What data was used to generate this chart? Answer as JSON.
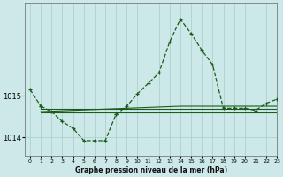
{
  "background_color": "#cce8e8",
  "grid_color": "#aacccc",
  "line_color": "#1a5c1a",
  "x": [
    0,
    1,
    2,
    3,
    4,
    5,
    6,
    7,
    8,
    9,
    10,
    11,
    12,
    13,
    14,
    15,
    16,
    17,
    18,
    19,
    20,
    21,
    22,
    23
  ],
  "series_dotted": [
    1015.15,
    1014.75,
    null,
    null,
    null,
    null,
    null,
    null,
    1014.55,
    1014.75,
    1015.05,
    1015.3,
    1015.55,
    1016.3,
    1016.85,
    1016.5,
    1016.1,
    1015.75,
    1014.7,
    1014.7,
    1014.7,
    1014.65,
    1014.82,
    1014.92
  ],
  "series_low": [
    null,
    1014.75,
    1014.62,
    1014.38,
    1014.22,
    1013.92,
    1013.92,
    1013.92,
    1014.55,
    null,
    null,
    null,
    null,
    null,
    null,
    null,
    null,
    null,
    null,
    null,
    null,
    null,
    null,
    null
  ],
  "series_flat_a": [
    null,
    1014.68,
    1014.68,
    1014.68,
    1014.68,
    1014.68,
    1014.68,
    1014.68,
    1014.68,
    1014.68,
    1014.68,
    1014.68,
    1014.68,
    1014.68,
    1014.68,
    1014.68,
    1014.68,
    1014.68,
    1014.68,
    1014.68,
    1014.68,
    1014.68,
    1014.68,
    1014.68
  ],
  "series_flat_b": [
    null,
    1014.6,
    1014.6,
    1014.6,
    1014.6,
    1014.6,
    1014.6,
    1014.6,
    1014.6,
    1014.6,
    1014.6,
    1014.6,
    1014.6,
    1014.6,
    1014.6,
    1014.6,
    1014.6,
    1014.6,
    1014.6,
    1014.6,
    1014.6,
    1014.6,
    1014.6,
    1014.6
  ],
  "series_rising": [
    null,
    1014.62,
    1014.63,
    1014.64,
    1014.65,
    1014.66,
    1014.67,
    1014.68,
    1014.69,
    1014.7,
    1014.71,
    1014.72,
    1014.73,
    1014.74,
    1014.75,
    1014.75,
    1014.75,
    1014.75,
    1014.75,
    1014.75,
    1014.75,
    1014.75,
    1014.75,
    1014.75
  ],
  "ylim_min": 1013.55,
  "ylim_max": 1017.25,
  "yticks": [
    1014.0,
    1015.0
  ],
  "xlim_min": -0.5,
  "xlim_max": 23,
  "xlabel": "Graphe pression niveau de la mer (hPa)"
}
